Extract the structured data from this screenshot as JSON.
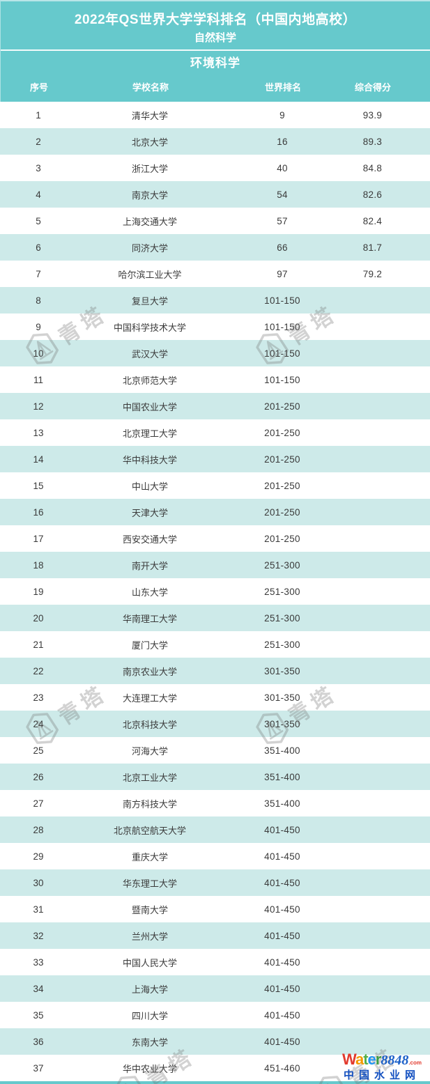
{
  "page": {
    "title_line1": "2022年QS世界大学学科排名（中国内地高校）",
    "title_line2": "自然科学",
    "section_title": "环境科学"
  },
  "table": {
    "columns": [
      "序号",
      "学校名称",
      "世界排名",
      "综合得分"
    ],
    "rows": [
      {
        "no": "1",
        "school": "清华大学",
        "world_rank": "9",
        "score": "93.9"
      },
      {
        "no": "2",
        "school": "北京大学",
        "world_rank": "16",
        "score": "89.3"
      },
      {
        "no": "3",
        "school": "浙江大学",
        "world_rank": "40",
        "score": "84.8"
      },
      {
        "no": "4",
        "school": "南京大学",
        "world_rank": "54",
        "score": "82.6"
      },
      {
        "no": "5",
        "school": "上海交通大学",
        "world_rank": "57",
        "score": "82.4"
      },
      {
        "no": "6",
        "school": "同济大学",
        "world_rank": "66",
        "score": "81.7"
      },
      {
        "no": "7",
        "school": "哈尔滨工业大学",
        "world_rank": "97",
        "score": "79.2"
      },
      {
        "no": "8",
        "school": "复旦大学",
        "world_rank": "101-150",
        "score": ""
      },
      {
        "no": "9",
        "school": "中国科学技术大学",
        "world_rank": "101-150",
        "score": ""
      },
      {
        "no": "10",
        "school": "武汉大学",
        "world_rank": "101-150",
        "score": ""
      },
      {
        "no": "11",
        "school": "北京师范大学",
        "world_rank": "101-150",
        "score": ""
      },
      {
        "no": "12",
        "school": "中国农业大学",
        "world_rank": "201-250",
        "score": ""
      },
      {
        "no": "13",
        "school": "北京理工大学",
        "world_rank": "201-250",
        "score": ""
      },
      {
        "no": "14",
        "school": "华中科技大学",
        "world_rank": "201-250",
        "score": ""
      },
      {
        "no": "15",
        "school": "中山大学",
        "world_rank": "201-250",
        "score": ""
      },
      {
        "no": "16",
        "school": "天津大学",
        "world_rank": "201-250",
        "score": ""
      },
      {
        "no": "17",
        "school": "西安交通大学",
        "world_rank": "201-250",
        "score": ""
      },
      {
        "no": "18",
        "school": "南开大学",
        "world_rank": "251-300",
        "score": ""
      },
      {
        "no": "19",
        "school": "山东大学",
        "world_rank": "251-300",
        "score": ""
      },
      {
        "no": "20",
        "school": "华南理工大学",
        "world_rank": "251-300",
        "score": ""
      },
      {
        "no": "21",
        "school": "厦门大学",
        "world_rank": "251-300",
        "score": ""
      },
      {
        "no": "22",
        "school": "南京农业大学",
        "world_rank": "301-350",
        "score": ""
      },
      {
        "no": "23",
        "school": "大连理工大学",
        "world_rank": "301-350",
        "score": ""
      },
      {
        "no": "24",
        "school": "北京科技大学",
        "world_rank": "301-350",
        "score": ""
      },
      {
        "no": "25",
        "school": "河海大学",
        "world_rank": "351-400",
        "score": ""
      },
      {
        "no": "26",
        "school": "北京工业大学",
        "world_rank": "351-400",
        "score": ""
      },
      {
        "no": "27",
        "school": "南方科技大学",
        "world_rank": "351-400",
        "score": ""
      },
      {
        "no": "28",
        "school": "北京航空航天大学",
        "world_rank": "401-450",
        "score": ""
      },
      {
        "no": "29",
        "school": "重庆大学",
        "world_rank": "401-450",
        "score": ""
      },
      {
        "no": "30",
        "school": "华东理工大学",
        "world_rank": "401-450",
        "score": ""
      },
      {
        "no": "31",
        "school": "暨南大学",
        "world_rank": "401-450",
        "score": ""
      },
      {
        "no": "32",
        "school": "兰州大学",
        "world_rank": "401-450",
        "score": ""
      },
      {
        "no": "33",
        "school": "中国人民大学",
        "world_rank": "401-450",
        "score": ""
      },
      {
        "no": "34",
        "school": "上海大学",
        "world_rank": "401-450",
        "score": ""
      },
      {
        "no": "35",
        "school": "四川大学",
        "world_rank": "401-450",
        "score": ""
      },
      {
        "no": "36",
        "school": "东南大学",
        "world_rank": "401-450",
        "score": ""
      },
      {
        "no": "37",
        "school": "华中农业大学",
        "world_rank": "451-460",
        "score": ""
      }
    ]
  },
  "watermark": {
    "text": "青塔",
    "icon": "qingta-tower-badge-icon"
  },
  "footer_logo": {
    "word_letters": [
      {
        "ch": "W",
        "color": "#e23a2e"
      },
      {
        "ch": "a",
        "color": "#f59a00"
      },
      {
        "ch": "t",
        "color": "#56b04a"
      },
      {
        "ch": "e",
        "color": "#2196f3"
      },
      {
        "ch": "r",
        "color": "#3d9c44"
      }
    ],
    "number": "8848",
    "tld": ".com",
    "subtitle": "中国水业网"
  },
  "colors": {
    "header_teal": "#66c9cc",
    "row_alt": "#cdeae9",
    "header_text": "#ffffff",
    "body_text": "#3a3a3a",
    "logo_blue": "#1350c0"
  }
}
